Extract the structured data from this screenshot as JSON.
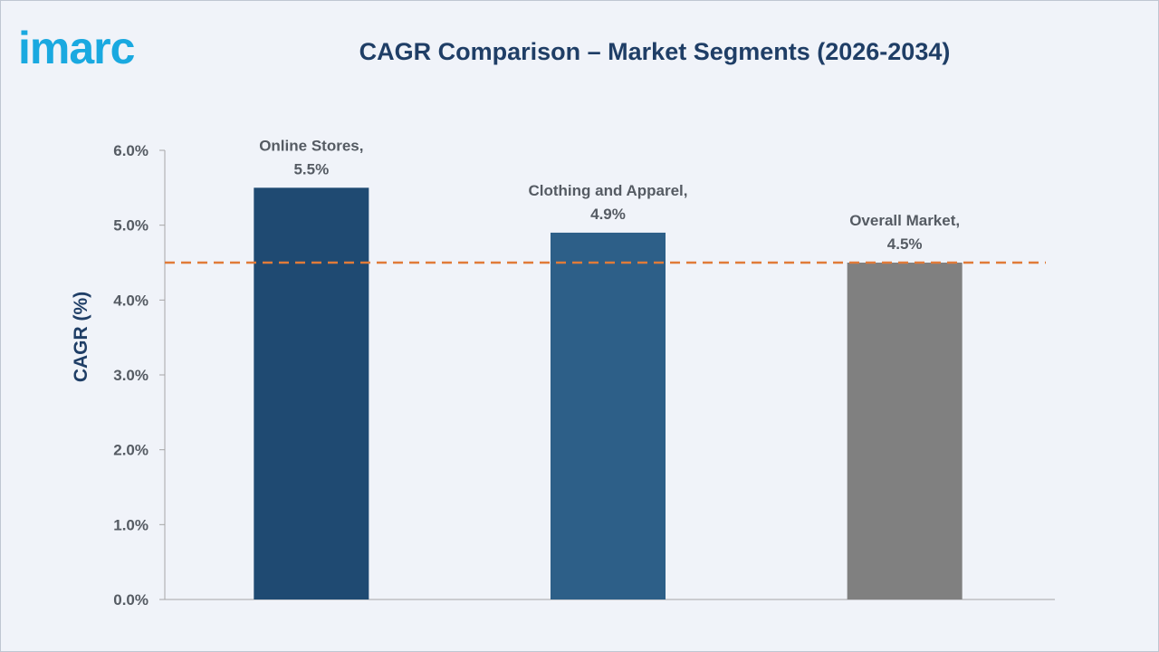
{
  "logo": {
    "text": "imarc",
    "color": "#1aa9e0"
  },
  "chart_data": {
    "type": "bar",
    "title": "CAGR Comparison – Market Segments (2026-2034)",
    "xlabel": "",
    "ylabel": "CAGR (%)",
    "categories": [
      "Online Stores",
      "Clothing and Apparel",
      "Overall Market"
    ],
    "values": [
      5.5,
      4.9,
      4.5
    ],
    "data_labels": [
      [
        "Online Stores,",
        "5.5%"
      ],
      [
        "Clothing and Apparel,",
        "4.9%"
      ],
      [
        "Overall Market,",
        "4.5%"
      ]
    ],
    "bar_colors": [
      "#1f4a72",
      "#2d5f88",
      "#808080"
    ],
    "ylim": [
      0,
      6
    ],
    "yticks": [
      0,
      1,
      2,
      3,
      4,
      5,
      6
    ],
    "ytick_labels": [
      "0.0%",
      "1.0%",
      "2.0%",
      "3.0%",
      "4.0%",
      "5.0%",
      "6.0%"
    ],
    "reference_line": {
      "value": 4.5,
      "style": "dashed",
      "color": "#e07b39"
    },
    "grid": false,
    "legend": "none"
  }
}
